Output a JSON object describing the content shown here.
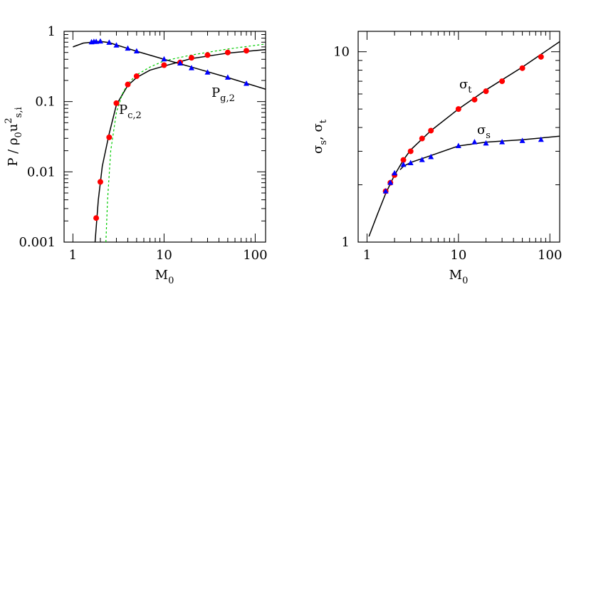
{
  "chart_data": [
    {
      "type": "line",
      "xlim": [
        0.8,
        130
      ],
      "ylim": [
        0.001,
        1
      ],
      "xscale": "log",
      "yscale": "log",
      "xticks": [
        1,
        10,
        100
      ],
      "xminor": [
        2,
        3,
        4,
        5,
        6,
        7,
        8,
        9,
        20,
        30,
        40,
        50,
        60,
        70,
        80,
        90
      ],
      "yticks": [
        0.001,
        0.01,
        0.1,
        1
      ],
      "yminor": [
        0.002,
        0.003,
        0.004,
        0.005,
        0.006,
        0.007,
        0.008,
        0.009,
        0.02,
        0.03,
        0.04,
        0.05,
        0.06,
        0.07,
        0.08,
        0.09,
        0.2,
        0.3,
        0.4,
        0.5,
        0.6,
        0.7,
        0.8,
        0.9
      ],
      "xlabel": [
        {
          "text": "M"
        },
        {
          "sub": "0"
        }
      ],
      "ylabel": [
        {
          "text": "P / ρ"
        },
        {
          "sub": "0"
        },
        {
          "text": "u"
        },
        {
          "sup": "2"
        },
        {
          "sub": "s,i"
        }
      ],
      "annotations": [
        [
          {
            "text": "P"
          },
          {
            "sub": "c,2"
          }
        ],
        [
          {
            "text": "P"
          },
          {
            "sub": "g,2"
          }
        ]
      ],
      "series": [
        {
          "color": "#000000",
          "marker": "none",
          "style": "solid",
          "x": [
            1,
            1.3,
            1.6,
            2,
            2.5,
            3,
            4,
            5,
            10,
            20,
            50,
            130
          ],
          "values": [
            0.6,
            0.68,
            0.7,
            0.72,
            0.69,
            0.64,
            0.57,
            0.52,
            0.4,
            0.31,
            0.22,
            0.15
          ]
        },
        {
          "color": "#000000",
          "marker": "none",
          "style": "solid",
          "x": [
            1.75,
            1.9,
            2.1,
            2.5,
            3,
            4,
            5,
            7,
            10,
            20,
            50,
            130
          ],
          "values": [
            0.001,
            0.004,
            0.012,
            0.035,
            0.09,
            0.17,
            0.22,
            0.28,
            0.32,
            0.41,
            0.49,
            0.55
          ]
        },
        {
          "color": "#00cc00",
          "marker": "none",
          "style": "dotted",
          "x": [
            2.3,
            2.4,
            2.6,
            3,
            3.5,
            4,
            5,
            7,
            10,
            20,
            50,
            130
          ],
          "values": [
            0.001,
            0.004,
            0.02,
            0.07,
            0.13,
            0.18,
            0.24,
            0.31,
            0.38,
            0.46,
            0.56,
            0.66
          ]
        },
        {
          "color": "#ff0000",
          "marker": "circle",
          "x": [
            1.8,
            2,
            2.5,
            3,
            4,
            5,
            10,
            15,
            20,
            30,
            50,
            80
          ],
          "values": [
            0.0022,
            0.0072,
            0.031,
            0.095,
            0.175,
            0.23,
            0.33,
            0.36,
            0.42,
            0.46,
            0.5,
            0.53
          ]
        },
        {
          "color": "#0000ff",
          "marker": "triangle",
          "x": [
            1.6,
            1.7,
            1.8,
            2,
            2.5,
            3,
            4,
            5,
            10,
            15,
            20,
            30,
            50,
            80
          ],
          "values": [
            0.7,
            0.71,
            0.71,
            0.72,
            0.69,
            0.63,
            0.57,
            0.52,
            0.4,
            0.35,
            0.3,
            0.26,
            0.22,
            0.18
          ]
        }
      ]
    },
    {
      "type": "line",
      "xlim": [
        0.8,
        128
      ],
      "ylim": [
        1,
        12.8
      ],
      "xscale": "log",
      "yscale": "log",
      "xticks": [
        1,
        10,
        100
      ],
      "xminor": [
        2,
        3,
        4,
        5,
        6,
        7,
        8,
        9,
        20,
        30,
        40,
        50,
        60,
        70,
        80,
        90
      ],
      "yticks": [
        1,
        10
      ],
      "yminor": [
        2,
        3,
        4,
        5,
        6,
        7,
        8,
        9
      ],
      "xlabel": [
        {
          "text": "M"
        },
        {
          "sub": "0"
        }
      ],
      "ylabel": [
        {
          "text": "σ"
        },
        {
          "sub": "s"
        },
        {
          "text": ",  σ"
        },
        {
          "sub": "t"
        }
      ],
      "annotations": [
        [
          {
            "text": "σ"
          },
          {
            "sub": "t"
          }
        ],
        [
          {
            "text": "σ"
          },
          {
            "sub": "s"
          }
        ]
      ],
      "series": [
        {
          "color": "#000000",
          "marker": "none",
          "style": "solid",
          "x": [
            1.05,
            1.3,
            1.6,
            2,
            2.5,
            3,
            5,
            10,
            20,
            50,
            128
          ],
          "values": [
            1.07,
            1.4,
            1.8,
            2.25,
            2.7,
            3.05,
            3.85,
            5,
            6.3,
            8.3,
            11.3
          ]
        },
        {
          "color": "#000000",
          "marker": "none",
          "style": "solid",
          "x": [
            2.3,
            2.5,
            3,
            5,
            10,
            20,
            50,
            128
          ],
          "values": [
            2.4,
            2.5,
            2.62,
            2.85,
            3.2,
            3.35,
            3.45,
            3.6
          ]
        },
        {
          "color": "#ff0000",
          "marker": "circle",
          "x": [
            1.6,
            1.8,
            2,
            2.5,
            3,
            4,
            5,
            10,
            15,
            20,
            30,
            50,
            80
          ],
          "values": [
            1.85,
            2.05,
            2.25,
            2.7,
            3,
            3.5,
            3.85,
            5,
            5.6,
            6.2,
            7,
            8.2,
            9.4
          ]
        },
        {
          "color": "#0000ff",
          "marker": "triangle",
          "x": [
            1.6,
            1.8,
            2,
            2.5,
            3,
            4,
            5,
            10,
            15,
            20,
            30,
            50,
            80
          ],
          "values": [
            1.85,
            2.05,
            2.3,
            2.55,
            2.6,
            2.7,
            2.8,
            3.2,
            3.35,
            3.3,
            3.35,
            3.4,
            3.45
          ]
        }
      ]
    }
  ]
}
